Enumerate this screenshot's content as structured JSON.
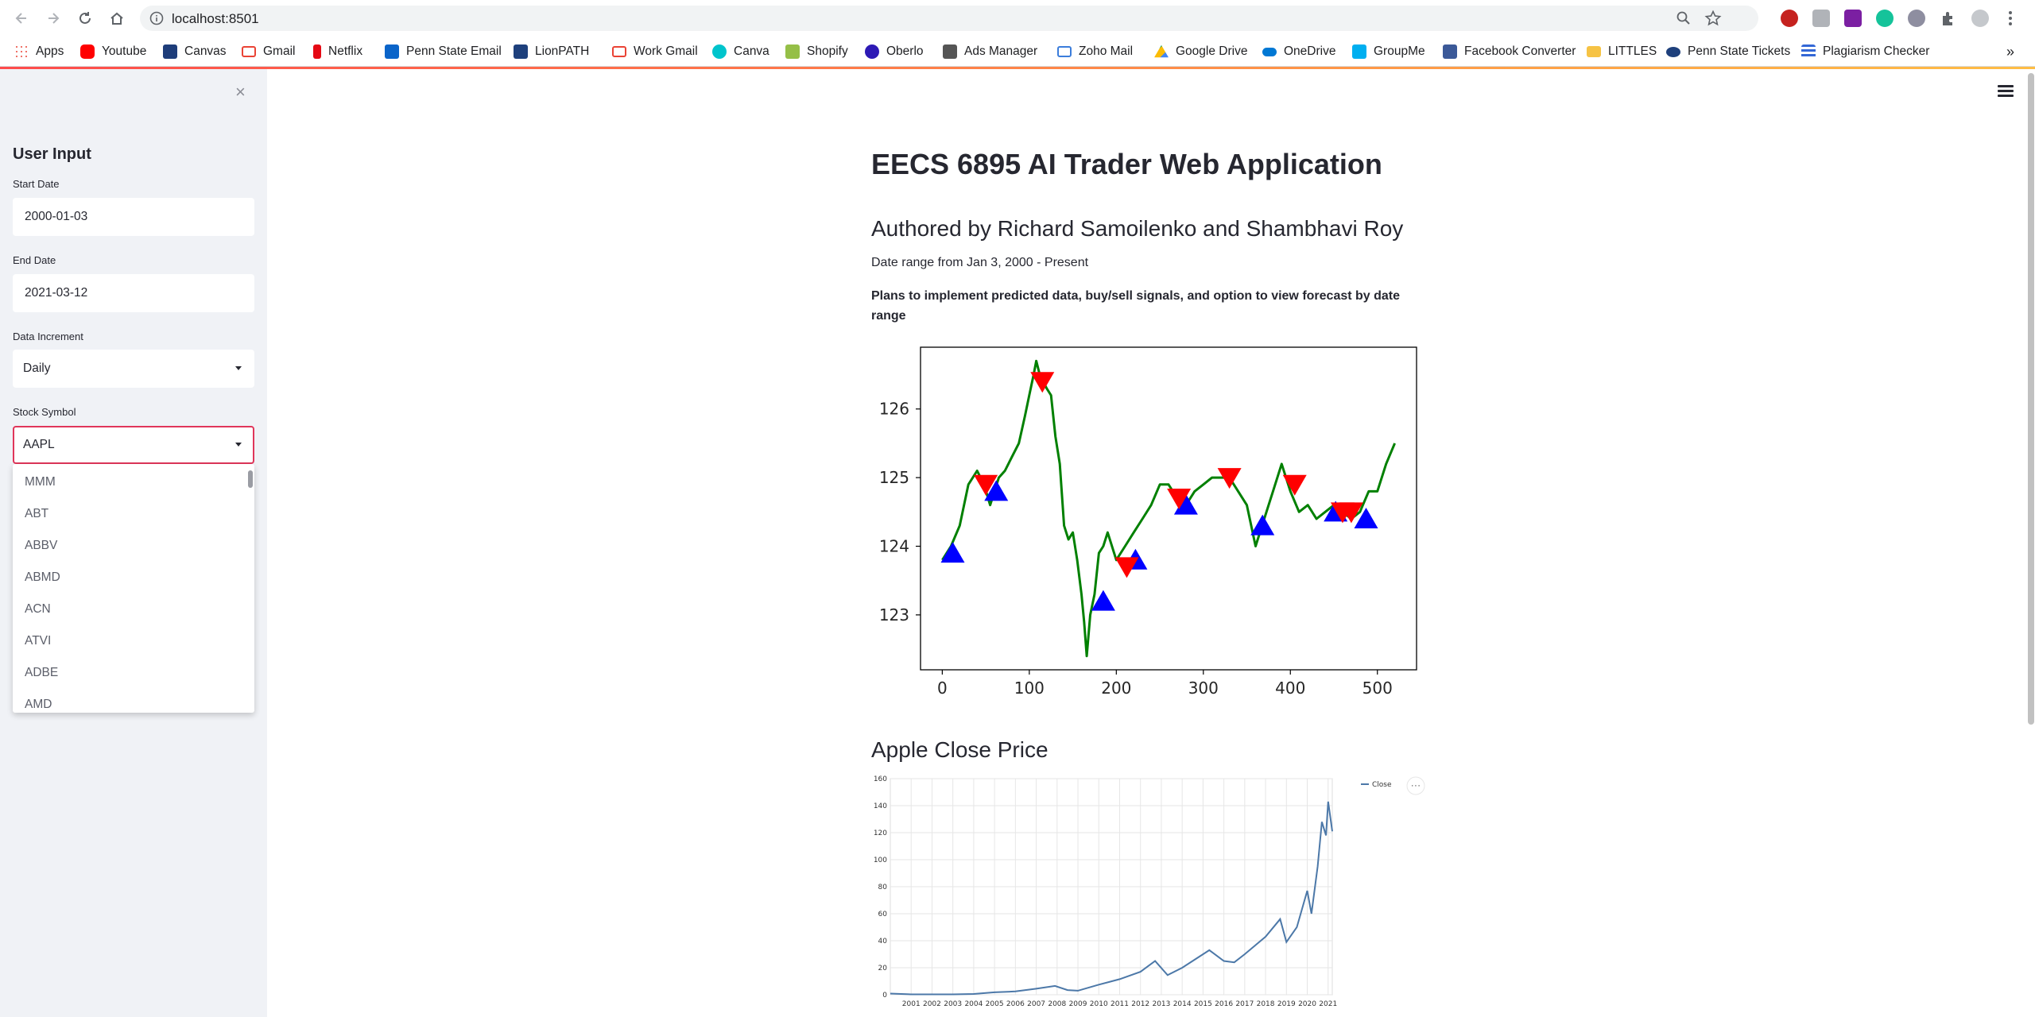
{
  "browser": {
    "url": "localhost:8501",
    "bookmarks": [
      {
        "label": "Apps",
        "icon": "apps-grid-icon",
        "color": "#4285f4"
      },
      {
        "label": "Youtube",
        "icon": "youtube-icon",
        "color": "#ff0000"
      },
      {
        "label": "Canvas",
        "icon": "canvas-icon",
        "color": "#1e3d7a"
      },
      {
        "label": "Gmail",
        "icon": "gmail-icon",
        "color": "#ea4335"
      },
      {
        "label": "Netflix",
        "icon": "netflix-icon",
        "color": "#e50914"
      },
      {
        "label": "Penn State Email",
        "icon": "outlook-icon",
        "color": "#0a64c9"
      },
      {
        "label": "LionPATH",
        "icon": "lionpath-icon",
        "color": "#1e407c"
      },
      {
        "label": "Work Gmail",
        "icon": "gmail-icon",
        "color": "#ea4335"
      },
      {
        "label": "Canva",
        "icon": "canva-icon",
        "color": "#00c4cc"
      },
      {
        "label": "Shopify",
        "icon": "shopify-icon",
        "color": "#95bf47"
      },
      {
        "label": "Oberlo",
        "icon": "oberlo-icon",
        "color": "#2d1ab5"
      },
      {
        "label": "Ads Manager",
        "icon": "ads-manager-icon",
        "color": "#555555"
      },
      {
        "label": "Zoho Mail",
        "icon": "zoho-mail-icon",
        "color": "#3b7ddb"
      },
      {
        "label": "Google Drive",
        "icon": "google-drive-icon",
        "color": "#fbbc04"
      },
      {
        "label": "OneDrive",
        "icon": "onedrive-icon",
        "color": "#0078d4"
      },
      {
        "label": "GroupMe",
        "icon": "groupme-icon",
        "color": "#00aff0"
      },
      {
        "label": "Facebook Converter",
        "icon": "facebook-converter-icon",
        "color": "#3b5998"
      },
      {
        "label": "LITTLES",
        "icon": "folder-icon",
        "color": "#f6c344"
      },
      {
        "label": "Penn State Tickets",
        "icon": "penn-state-icon",
        "color": "#1e407c"
      },
      {
        "label": "Plagiarism Checker",
        "icon": "plagiarism-checker-icon",
        "color": "#3367d6"
      }
    ],
    "more_bookmarks": "»"
  },
  "sidebar": {
    "close": "×",
    "heading": "User Input",
    "start_date_label": "Start Date",
    "start_date_value": "2000-01-03",
    "end_date_label": "End Date",
    "end_date_value": "2021-03-12",
    "increment_label": "Data Increment",
    "increment_value": "Daily",
    "symbol_label": "Stock Symbol",
    "symbol_value": "AAPL",
    "symbol_options": [
      "MMM",
      "ABT",
      "ABBV",
      "ABMD",
      "ACN",
      "ATVI",
      "ADBE",
      "AMD"
    ]
  },
  "main": {
    "title": "EECS 6895 AI Trader Web Application",
    "authors": "Authored by Richard Samoilenko and Shambhavi Roy",
    "date_range": "Date range from Jan 3, 2000 - Present",
    "plans": "Plans to implement predicted data, buy/sell signals, and option to view forecast by date range",
    "close_price_heading": "Apple Close Price"
  },
  "chart_data": [
    {
      "type": "line",
      "title": "",
      "xlabel": "",
      "ylabel": "",
      "xlim": [
        -25,
        545
      ],
      "ylim": [
        122.2,
        126.9
      ],
      "xticks": [
        0,
        100,
        200,
        300,
        400,
        500
      ],
      "yticks": [
        123,
        124,
        125,
        126
      ],
      "line_color": "#008000",
      "series": [
        {
          "x": [
            0,
            10,
            20,
            30,
            40,
            48,
            55,
            60,
            65,
            72,
            80,
            88,
            95,
            100,
            105,
            108,
            112,
            116,
            120,
            125,
            130,
            135,
            140,
            145,
            150,
            155,
            160,
            163,
            166,
            170,
            175,
            180,
            185,
            190,
            200,
            210,
            220,
            230,
            240,
            250,
            260,
            270,
            280,
            290,
            300,
            310,
            320,
            330,
            340,
            350,
            355,
            360,
            370,
            380,
            390,
            400,
            410,
            420,
            430,
            440,
            450,
            460,
            470,
            480,
            490,
            500,
            510,
            520
          ],
          "y": [
            123.8,
            124.0,
            124.3,
            124.9,
            125.1,
            124.9,
            124.6,
            124.8,
            125.0,
            125.1,
            125.3,
            125.5,
            125.9,
            126.2,
            126.5,
            126.7,
            126.5,
            126.4,
            126.3,
            126.2,
            125.6,
            125.2,
            124.3,
            124.1,
            124.2,
            123.8,
            123.3,
            122.9,
            122.4,
            123.0,
            123.3,
            123.9,
            124.0,
            124.2,
            123.8,
            124.0,
            124.2,
            124.4,
            124.6,
            124.9,
            124.9,
            124.7,
            124.6,
            124.8,
            124.9,
            125.0,
            125.0,
            125.0,
            124.8,
            124.6,
            124.3,
            124.0,
            124.4,
            124.8,
            125.2,
            124.8,
            124.5,
            124.6,
            124.4,
            124.5,
            124.6,
            124.5,
            124.4,
            124.5,
            124.8,
            124.8,
            125.2,
            125.5
          ]
        }
      ],
      "buy_signals": [
        {
          "x": 12,
          "y": 123.9
        },
        {
          "x": 62,
          "y": 124.8
        },
        {
          "x": 185,
          "y": 123.2
        },
        {
          "x": 222,
          "y": 123.8
        },
        {
          "x": 280,
          "y": 124.6
        },
        {
          "x": 368,
          "y": 124.3
        },
        {
          "x": 452,
          "y": 124.5
        },
        {
          "x": 487,
          "y": 124.4
        }
      ],
      "sell_signals": [
        {
          "x": 50,
          "y": 124.9
        },
        {
          "x": 115,
          "y": 126.4
        },
        {
          "x": 212,
          "y": 123.7
        },
        {
          "x": 272,
          "y": 124.7
        },
        {
          "x": 330,
          "y": 125.0
        },
        {
          "x": 405,
          "y": 124.9
        },
        {
          "x": 460,
          "y": 124.5
        },
        {
          "x": 470,
          "y": 124.5
        }
      ],
      "buy_color": "#0000ff",
      "sell_color": "#ff0000"
    },
    {
      "type": "line",
      "title": "",
      "xlabel": "",
      "ylabel": "",
      "ylim": [
        0,
        160
      ],
      "yticks": [
        0,
        20,
        40,
        60,
        80,
        100,
        120,
        140,
        160
      ],
      "xticks": [
        "2001",
        "2002",
        "2003",
        "2004",
        "2005",
        "2006",
        "2007",
        "2008",
        "2009",
        "2010",
        "2011",
        "2012",
        "2013",
        "2014",
        "2015",
        "2016",
        "2017",
        "2018",
        "2019",
        "2020",
        "2021"
      ],
      "grid": true,
      "legend": {
        "position": "top-right",
        "label": "Close"
      },
      "line_color": "#4c78a8",
      "series": [
        {
          "name": "Close",
          "x": [
            2000.0,
            2001.0,
            2002.0,
            2003.0,
            2004.0,
            2005.0,
            2006.0,
            2007.0,
            2007.9,
            2008.5,
            2009.0,
            2010.0,
            2011.0,
            2012.0,
            2012.7,
            2013.3,
            2014.0,
            2015.3,
            2016.0,
            2016.5,
            2017.0,
            2018.0,
            2018.7,
            2019.0,
            2019.5,
            2020.0,
            2020.2,
            2020.5,
            2020.7,
            2020.9,
            2021.0,
            2021.2
          ],
          "y": [
            0.9,
            0.3,
            0.3,
            0.3,
            0.6,
            1.8,
            2.5,
            4.5,
            6.5,
            3.5,
            3.0,
            7.5,
            11.5,
            17.0,
            25.0,
            14.5,
            20.0,
            33.0,
            25.0,
            24.0,
            30.0,
            43.0,
            56.0,
            39.0,
            50.0,
            77.0,
            60.0,
            95.0,
            128.0,
            118.0,
            143.0,
            121.0
          ]
        }
      ],
      "menu_button": "⋯"
    }
  ]
}
